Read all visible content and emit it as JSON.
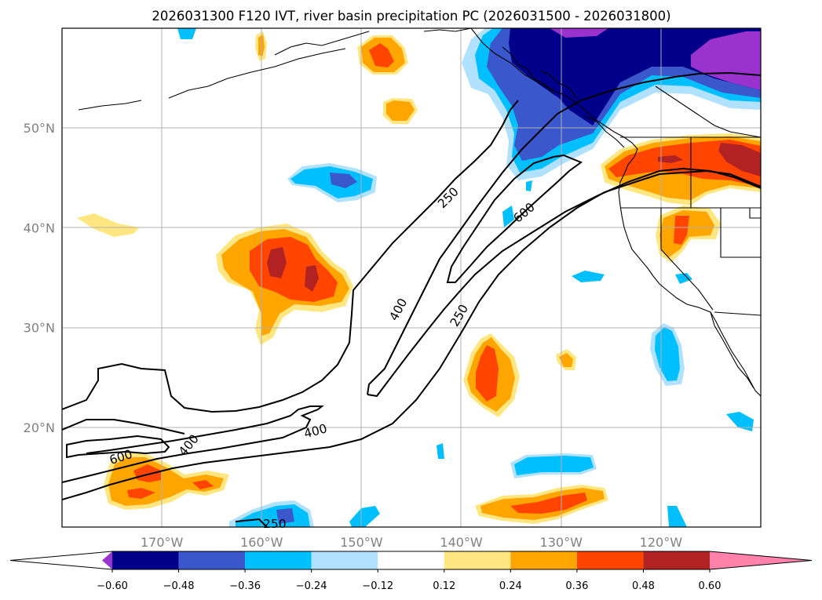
{
  "title": "2026031300 F120 IVT, river basin precipitation PC (2026031500 - 2026031800)",
  "chart_data": {
    "type": "contour-map",
    "title": "2026031300 F120 IVT, river basin precipitation PC (2026031500 - 2026031800)",
    "lon_range": [
      -180,
      -110
    ],
    "lat_range": [
      10,
      60
    ],
    "x_ticks": [
      "170°W",
      "160°W",
      "150°W",
      "140°W",
      "130°W",
      "120°W"
    ],
    "x_tick_values": [
      -170,
      -160,
      -150,
      -140,
      -130,
      -120
    ],
    "y_ticks": [
      "20°N",
      "30°N",
      "40°N",
      "50°N"
    ],
    "y_tick_values": [
      20,
      30,
      40,
      50
    ],
    "grid": true,
    "ivt_contour_levels": [
      250,
      400,
      600
    ],
    "contour_labels": [
      {
        "text": "250",
        "lon": -141.3,
        "lat": 43.0,
        "angle": -45
      },
      {
        "text": "600",
        "lon": -133.7,
        "lat": 41.5,
        "angle": -40
      },
      {
        "text": "400",
        "lon": -146.3,
        "lat": 31.8,
        "angle": -62
      },
      {
        "text": "250",
        "lon": -140.2,
        "lat": 31.2,
        "angle": -60
      },
      {
        "text": "400",
        "lon": -154.6,
        "lat": 19.6,
        "angle": -15
      },
      {
        "text": "400",
        "lon": -167.3,
        "lat": 18.2,
        "angle": -50
      },
      {
        "text": "600",
        "lon": -174.1,
        "lat": 17.0,
        "angle": -18
      },
      {
        "text": "250",
        "lon": -158.7,
        "lat": 10.3,
        "angle": 0
      }
    ],
    "colorbar": {
      "ticks": [
        "−0.60",
        "−0.48",
        "−0.36",
        "−0.24",
        "−0.12",
        "0.12",
        "0.24",
        "0.36",
        "0.48",
        "0.60"
      ],
      "boundaries": [
        -0.6,
        -0.48,
        -0.36,
        -0.24,
        -0.12,
        0.12,
        0.24,
        0.36,
        0.48,
        0.6
      ],
      "colors": [
        "#9a32cd",
        "#00008b",
        "#3a57cc",
        "#00bfff",
        "#b0e2ff",
        "#ffffff",
        "#ffe680",
        "#ffa500",
        "#ff4500",
        "#b22222",
        "#ff82ab"
      ],
      "extend": "both"
    },
    "precip_regions": [
      {
        "name": "gulf-of-alaska-negative",
        "center_lon": -125,
        "center_lat": 55,
        "min": -0.6
      },
      {
        "name": "pacific-northwest-positive",
        "center_lon": -116,
        "center_lat": 46,
        "max": 0.5
      },
      {
        "name": "subtropical-central-pacific-positive",
        "center_lon": -157,
        "center_lat": 36,
        "max": 0.5
      },
      {
        "name": "sw-pacific-positive",
        "center_lon": -136,
        "center_lat": 25,
        "max": 0.4
      },
      {
        "name": "southwest-low-latitude-positive",
        "center_lon": -170,
        "center_lat": 14,
        "max": 0.4
      },
      {
        "name": "south-central-positive",
        "center_lon": -130,
        "center_lat": 12,
        "max": 0.4
      }
    ]
  }
}
